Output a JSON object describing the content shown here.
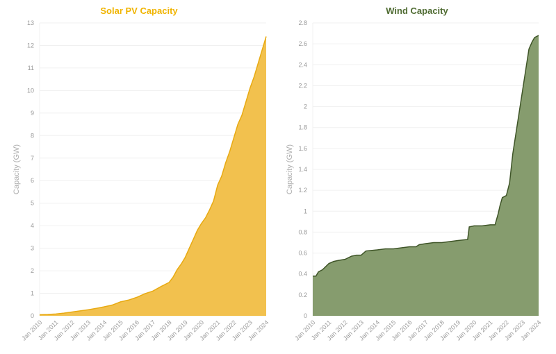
{
  "colors": {
    "solar_title": "#f0b400",
    "solar_fill": "#f2c14e",
    "solar_line": "#e8aa12",
    "wind_title": "#4f6b32",
    "wind_fill": "#869c6e",
    "wind_line": "#3f5528",
    "grid": "#f0f0f0",
    "tick": "#9a9a9a"
  },
  "chart_data": [
    {
      "type": "area",
      "title": "Solar PV Capacity",
      "xlabel": "",
      "ylabel": "Capacity (GW)",
      "ylim": [
        0,
        13
      ],
      "yticks": [
        0,
        1,
        2,
        3,
        4,
        5,
        6,
        7,
        8,
        9,
        10,
        11,
        12,
        13
      ],
      "xlim": [
        "Jan 2010",
        "Jan 2024"
      ],
      "xticks": [
        "Jan 2010",
        "Jan 2011",
        "Jan 2012",
        "Jan 2013",
        "Jan 2014",
        "Jan 2015",
        "Jan 2016",
        "Jan 2017",
        "Jan 2018",
        "Jan 2019",
        "Jan 2020",
        "Jan 2021",
        "Jan 2022",
        "Jan 2023",
        "Jan 2024"
      ],
      "grid": true,
      "legend": "none",
      "x": [
        2010.0,
        2010.5,
        2011.0,
        2011.5,
        2012.0,
        2012.5,
        2013.0,
        2013.5,
        2014.0,
        2014.5,
        2015.0,
        2015.5,
        2016.0,
        2016.5,
        2017.0,
        2017.5,
        2018.0,
        2018.25,
        2018.5,
        2018.75,
        2019.0,
        2019.25,
        2019.5,
        2019.75,
        2020.0,
        2020.25,
        2020.5,
        2020.75,
        2021.0,
        2021.25,
        2021.5,
        2021.75,
        2022.0,
        2022.25,
        2022.5,
        2022.75,
        2023.0,
        2023.25,
        2023.5,
        2023.75,
        2024.0
      ],
      "values": [
        0.05,
        0.06,
        0.08,
        0.12,
        0.17,
        0.22,
        0.27,
        0.33,
        0.4,
        0.48,
        0.62,
        0.7,
        0.82,
        0.98,
        1.1,
        1.3,
        1.48,
        1.72,
        2.05,
        2.3,
        2.6,
        3.0,
        3.4,
        3.8,
        4.1,
        4.35,
        4.7,
        5.1,
        5.8,
        6.2,
        6.8,
        7.3,
        7.9,
        8.5,
        8.9,
        9.5,
        10.1,
        10.6,
        11.2,
        11.8,
        12.4
      ]
    },
    {
      "type": "area",
      "title": "Wind Capacity",
      "xlabel": "",
      "ylabel": "Capacity (GW)",
      "ylim": [
        0,
        2.8
      ],
      "yticks": [
        0,
        0.2,
        0.4,
        0.6,
        0.8,
        1,
        1.2,
        1.4,
        1.6,
        1.8,
        2,
        2.2,
        2.4,
        2.6,
        2.8
      ],
      "xlim": [
        "Jan 2010",
        "Jan 2024"
      ],
      "xticks": [
        "Jan 2010",
        "Jan 2011",
        "Jan 2012",
        "Jan 2013",
        "Jan 2014",
        "Jan 2015",
        "Jan 2016",
        "Jan 2017",
        "Jan 2018",
        "Jan 2019",
        "Jan 2020",
        "Jan 2021",
        "Jan 2022",
        "Jan 2023",
        "Jan 2024"
      ],
      "grid": true,
      "legend": "none",
      "x": [
        2010.0,
        2010.2,
        2010.35,
        2010.6,
        2010.8,
        2011.0,
        2011.3,
        2011.6,
        2012.0,
        2012.4,
        2012.7,
        2013.0,
        2013.3,
        2014.0,
        2014.5,
        2015.0,
        2015.5,
        2016.0,
        2016.4,
        2016.6,
        2017.0,
        2017.5,
        2018.0,
        2018.5,
        2019.0,
        2019.6,
        2019.7,
        2020.0,
        2020.5,
        2021.0,
        2021.3,
        2021.5,
        2021.6,
        2021.75,
        2022.0,
        2022.2,
        2022.4,
        2022.6,
        2022.8,
        2023.0,
        2023.2,
        2023.4,
        2023.6,
        2023.75,
        2024.0
      ],
      "values": [
        0.38,
        0.38,
        0.42,
        0.44,
        0.47,
        0.5,
        0.52,
        0.53,
        0.54,
        0.57,
        0.58,
        0.58,
        0.62,
        0.63,
        0.64,
        0.64,
        0.65,
        0.66,
        0.66,
        0.68,
        0.69,
        0.7,
        0.7,
        0.71,
        0.72,
        0.73,
        0.85,
        0.86,
        0.86,
        0.87,
        0.87,
        0.98,
        1.05,
        1.13,
        1.15,
        1.27,
        1.55,
        1.75,
        1.95,
        2.15,
        2.35,
        2.55,
        2.62,
        2.66,
        2.68
      ]
    }
  ]
}
